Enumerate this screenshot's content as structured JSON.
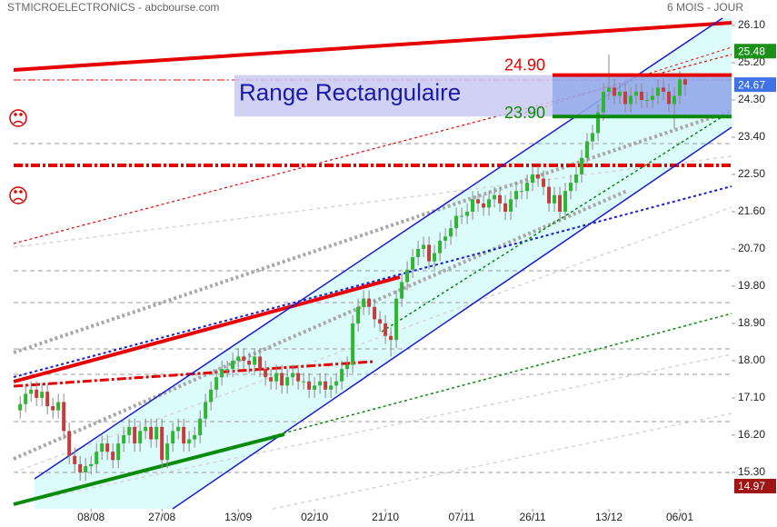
{
  "header": {
    "title": "STMICROELECTRONICS - abcbourse.com",
    "period": "6 MOIS - JOUR"
  },
  "chart_data": {
    "type": "candlestick",
    "open": [
      16.8,
      16.95,
      17.2,
      17.3,
      17.1,
      17.25,
      16.9,
      16.8,
      17.0,
      16.3,
      15.7,
      15.5,
      15.3,
      15.45,
      15.5,
      15.8,
      16.0,
      15.8,
      15.6,
      16.0,
      16.2,
      16.4,
      16.0,
      16.3,
      16.4,
      16.1,
      16.4,
      15.6,
      16.0,
      16.3,
      16.4,
      16.0,
      16.1,
      16.2,
      16.6,
      17.0,
      17.3,
      17.6,
      17.8,
      17.8,
      18.0,
      18.1,
      18.0,
      17.9,
      18.1,
      17.8,
      17.6,
      17.5,
      17.7,
      17.4,
      17.6,
      17.7,
      17.5,
      17.5,
      17.3,
      17.4,
      17.5,
      17.3,
      17.4,
      17.5,
      17.8,
      17.9,
      18.9,
      19.3,
      19.5,
      19.3,
      19.0,
      18.9,
      18.6,
      18.5,
      19.5,
      19.9,
      20.2,
      20.5,
      20.7,
      20.8,
      20.4,
      20.6,
      20.9,
      21.0,
      21.2,
      21.5,
      21.5,
      21.6,
      21.9,
      21.8,
      21.7,
      21.9,
      22.0,
      21.8,
      21.6,
      21.9,
      22.1,
      22.1,
      22.3,
      22.5,
      22.4,
      22.2,
      21.8,
      22.0,
      21.6,
      22.1,
      22.3,
      22.5,
      22.9,
      23.3,
      23.5,
      24.0,
      24.5,
      24.6,
      24.4,
      24.5,
      24.2,
      24.4,
      24.5,
      24.3,
      24.3,
      24.4,
      24.6,
      24.5,
      24.2,
      24.4,
      24.8
    ],
    "high": [
      17.15,
      17.4,
      17.5,
      17.5,
      17.45,
      17.45,
      17.1,
      17.2,
      17.2,
      16.5,
      15.9,
      15.7,
      15.65,
      15.7,
      16.0,
      16.2,
      16.2,
      16.0,
      16.2,
      16.4,
      16.6,
      16.6,
      16.5,
      16.6,
      16.6,
      16.6,
      16.6,
      16.2,
      16.5,
      16.6,
      16.6,
      16.3,
      16.4,
      16.8,
      17.2,
      17.5,
      17.8,
      18.0,
      18.0,
      18.2,
      18.3,
      18.3,
      18.2,
      18.3,
      18.3,
      18.0,
      17.8,
      17.9,
      17.9,
      17.8,
      17.9,
      17.9,
      17.7,
      17.7,
      17.6,
      17.7,
      17.7,
      17.6,
      17.7,
      18.0,
      18.1,
      19.1,
      19.5,
      19.7,
      19.7,
      19.5,
      19.2,
      19.1,
      18.8,
      19.7,
      20.1,
      20.4,
      20.7,
      20.9,
      21.0,
      21.0,
      20.8,
      21.1,
      21.2,
      21.4,
      21.7,
      21.7,
      21.8,
      22.1,
      22.1,
      22.0,
      22.1,
      22.2,
      22.2,
      22.0,
      22.1,
      22.3,
      22.3,
      22.5,
      22.7,
      22.7,
      22.6,
      22.4,
      22.2,
      22.2,
      22.3,
      22.5,
      22.7,
      23.1,
      23.5,
      23.7,
      24.2,
      24.7,
      25.4,
      24.8,
      24.7,
      24.7,
      24.6,
      24.7,
      24.7,
      24.5,
      24.6,
      24.8,
      24.8,
      24.7,
      24.6,
      25.0,
      24.9
    ],
    "low": [
      16.6,
      16.75,
      17.0,
      16.9,
      16.9,
      16.7,
      16.6,
      16.6,
      16.1,
      15.5,
      15.3,
      15.1,
      15.1,
      15.25,
      15.3,
      15.6,
      15.6,
      15.4,
      15.4,
      15.8,
      16.0,
      15.8,
      15.8,
      16.1,
      15.9,
      15.9,
      15.4,
      15.4,
      15.8,
      16.1,
      15.8,
      15.8,
      15.9,
      16.0,
      16.4,
      16.8,
      17.1,
      17.4,
      17.6,
      17.6,
      17.8,
      17.8,
      17.7,
      17.7,
      17.6,
      17.4,
      17.3,
      17.3,
      17.2,
      17.2,
      17.4,
      17.3,
      17.3,
      17.1,
      17.1,
      17.2,
      17.1,
      17.1,
      17.2,
      17.3,
      17.6,
      17.7,
      18.7,
      19.1,
      19.1,
      18.8,
      18.7,
      18.4,
      18.1,
      18.3,
      19.3,
      19.7,
      20.0,
      20.3,
      20.5,
      20.2,
      20.2,
      20.4,
      20.7,
      20.8,
      21.0,
      21.3,
      21.3,
      21.4,
      21.6,
      21.5,
      21.5,
      21.7,
      21.6,
      21.4,
      21.4,
      21.7,
      21.9,
      21.9,
      22.1,
      22.2,
      22.0,
      21.6,
      21.6,
      21.4,
      21.4,
      21.9,
      22.1,
      22.3,
      22.7,
      23.1,
      23.3,
      23.8,
      24.3,
      24.2,
      24.2,
      24.0,
      24.0,
      24.2,
      24.1,
      24.1,
      24.1,
      24.2,
      24.3,
      24.0,
      23.6,
      24.2,
      24.4
    ],
    "close": [
      16.95,
      17.2,
      17.3,
      17.1,
      17.25,
      16.9,
      16.8,
      17.0,
      16.3,
      15.7,
      15.5,
      15.3,
      15.45,
      15.5,
      15.8,
      16.0,
      15.8,
      15.6,
      16.0,
      16.2,
      16.4,
      16.0,
      16.3,
      16.4,
      16.1,
      16.4,
      15.6,
      16.0,
      16.3,
      16.4,
      16.0,
      16.1,
      16.2,
      16.6,
      17.0,
      17.3,
      17.6,
      17.8,
      17.8,
      18.0,
      18.1,
      18.0,
      17.9,
      18.1,
      17.8,
      17.6,
      17.5,
      17.7,
      17.4,
      17.6,
      17.7,
      17.5,
      17.5,
      17.3,
      17.4,
      17.5,
      17.3,
      17.4,
      17.5,
      17.8,
      17.9,
      18.9,
      19.3,
      19.5,
      19.3,
      19.0,
      18.9,
      18.6,
      18.5,
      19.5,
      19.9,
      20.2,
      20.5,
      20.7,
      20.8,
      20.4,
      20.6,
      20.9,
      21.0,
      21.2,
      21.5,
      21.5,
      21.6,
      21.9,
      21.8,
      21.7,
      21.9,
      22.0,
      21.8,
      21.6,
      21.9,
      22.1,
      22.1,
      22.3,
      22.5,
      22.4,
      22.2,
      21.8,
      22.0,
      21.6,
      22.1,
      22.3,
      22.5,
      22.9,
      23.3,
      23.5,
      24.0,
      24.5,
      24.6,
      24.4,
      24.5,
      24.2,
      24.4,
      24.5,
      24.3,
      24.3,
      24.4,
      24.6,
      24.5,
      24.2,
      24.4,
      24.8,
      24.67
    ],
    "colors": {
      "up": "#2fb52f",
      "down": "#c43c3c",
      "wick": "#8a8a8a"
    },
    "xlim": [
      -1.2,
      130.5
    ],
    "xticks": [
      {
        "value": 13,
        "label": "08/08"
      },
      {
        "value": 26,
        "label": "27/08"
      },
      {
        "value": 40,
        "label": "13/09"
      },
      {
        "value": 54,
        "label": "02/10"
      },
      {
        "value": 67,
        "label": "21/10"
      },
      {
        "value": 81,
        "label": "07/11"
      },
      {
        "value": 94,
        "label": "26/11"
      },
      {
        "value": 108,
        "label": "13/12"
      },
      {
        "value": 121,
        "label": "06/01"
      }
    ],
    "ylim": [
      14.42,
      26.32
    ],
    "yticks": [
      {
        "value": 15.3,
        "label": "15.30"
      },
      {
        "value": 16.2,
        "label": "16.20"
      },
      {
        "value": 17.1,
        "label": "17.10"
      },
      {
        "value": 18,
        "label": "18.00"
      },
      {
        "value": 18.9,
        "label": "18.90"
      },
      {
        "value": 19.8,
        "label": "19.80"
      },
      {
        "value": 20.7,
        "label": "20.70"
      },
      {
        "value": 21.6,
        "label": "21.60"
      },
      {
        "value": 22.5,
        "label": "22.50"
      },
      {
        "value": 23.4,
        "label": "23.40"
      },
      {
        "value": 24.3,
        "label": "24.30"
      },
      {
        "value": 25.2,
        "label": "25.20"
      },
      {
        "value": 26.1,
        "label": "26.10"
      }
    ],
    "range_label": "Range Rectangulaire",
    "levels": [
      {
        "value": 24.9,
        "label": "24.90",
        "color": "#e60000"
      },
      {
        "value": 23.9,
        "label": "23.90",
        "color": "#0a8a0a"
      }
    ],
    "price_tags": [
      {
        "value": 25.48,
        "label": "25.48",
        "color": "#1a8f1a"
      },
      {
        "value": 24.67,
        "label": "24.67",
        "color": "#3f72e6"
      },
      {
        "value": 14.97,
        "label": "14.97",
        "color": "#a01414"
      }
    ]
  }
}
